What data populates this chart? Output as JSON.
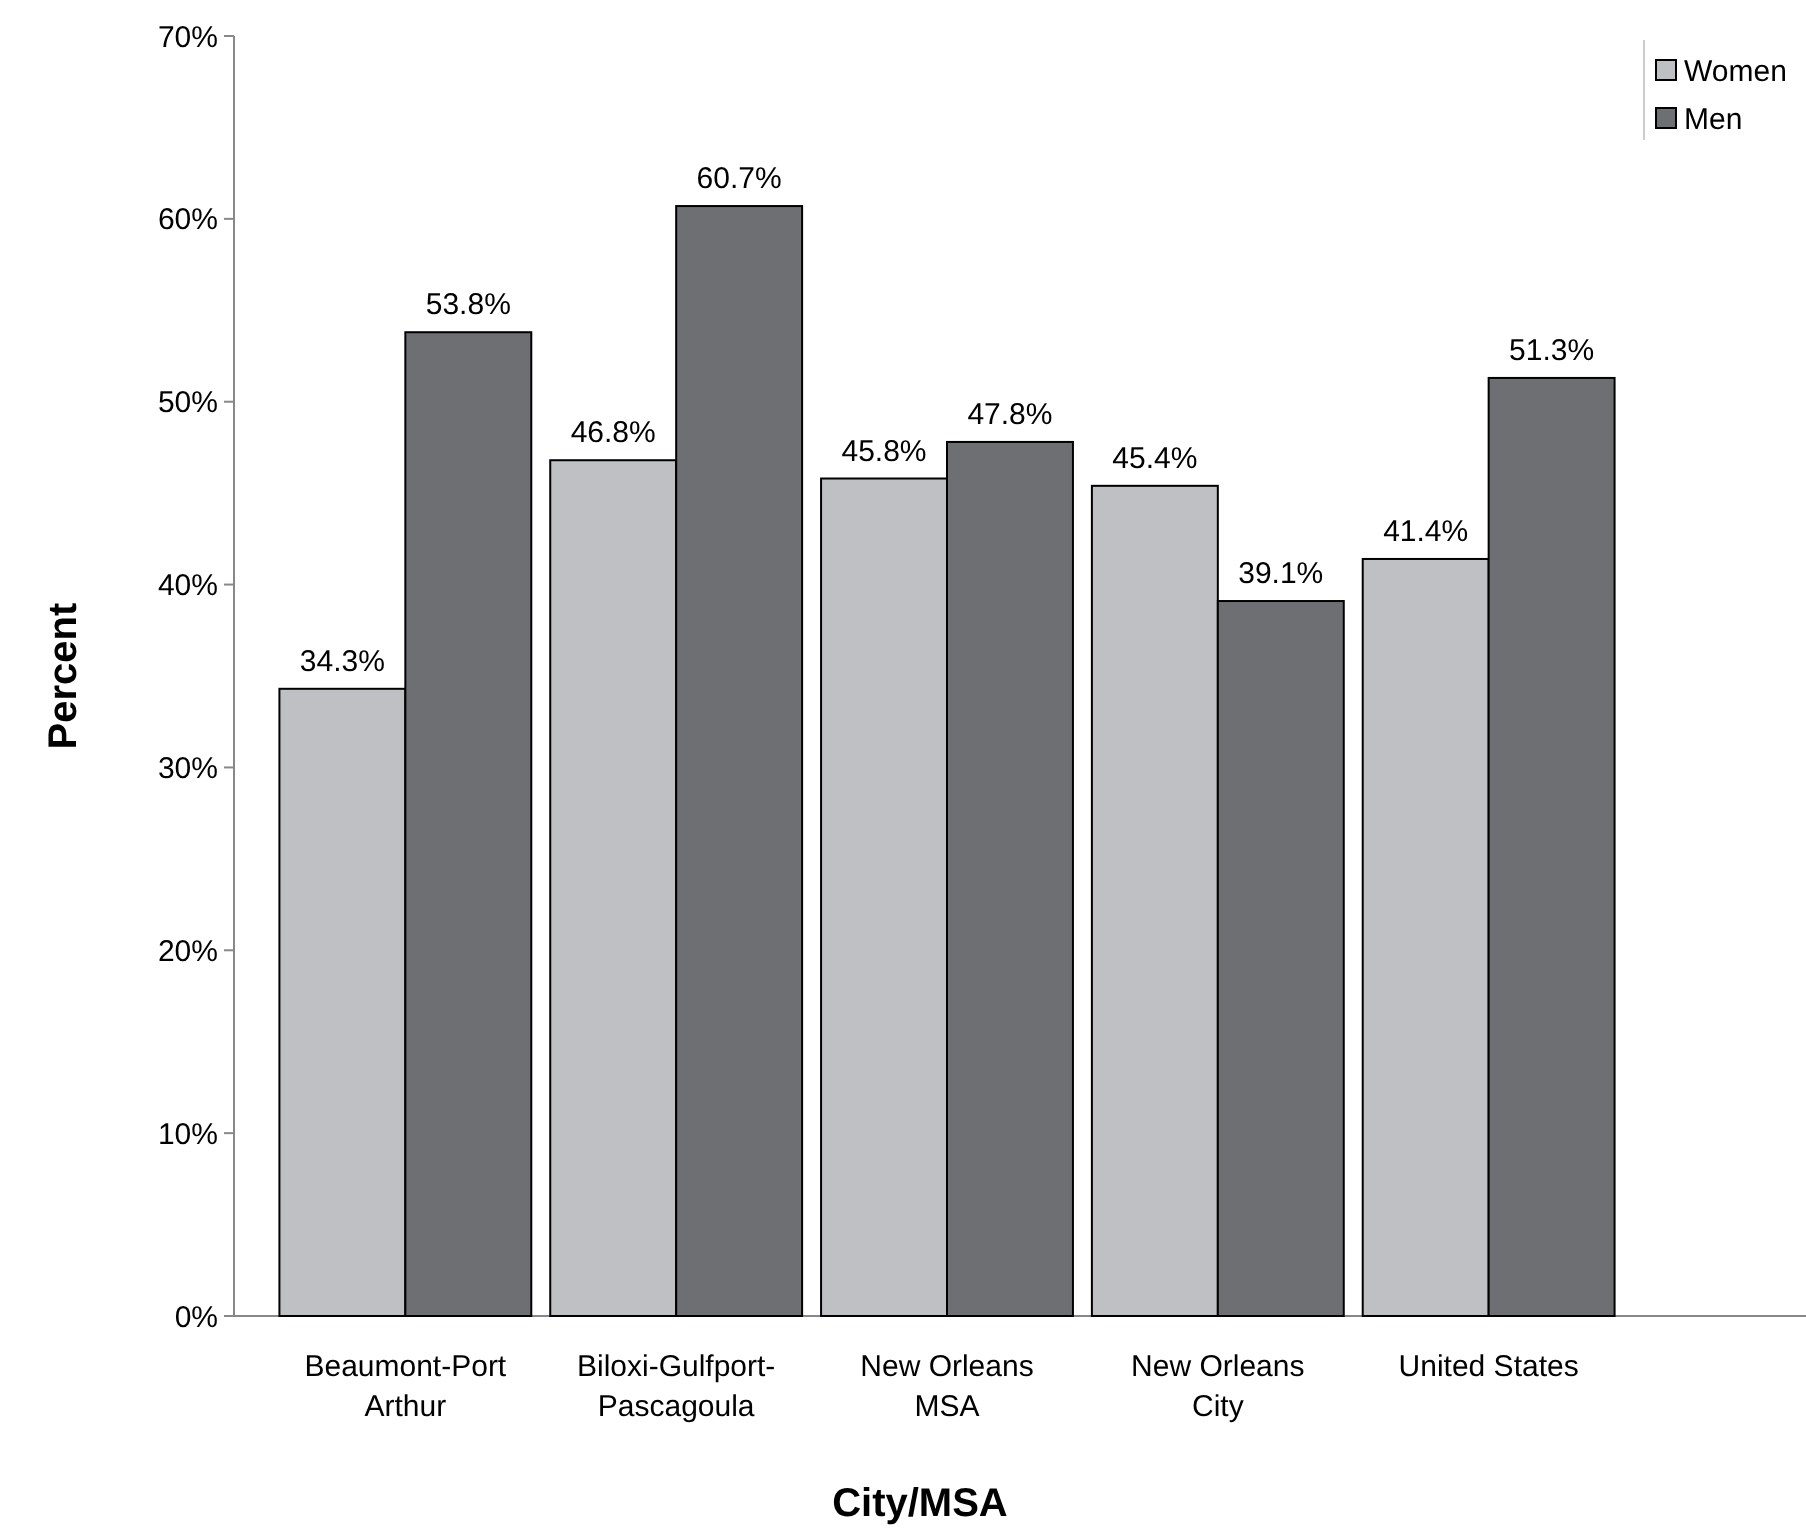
{
  "chart_data": {
    "type": "bar",
    "xlabel": "City/MSA",
    "ylabel": "Percent",
    "categories": [
      "Beaumont-Port\nArthur",
      "Biloxi-Gulfport-\nPascagoula",
      "New Orleans\nMSA",
      "New Orleans\nCity",
      "United States"
    ],
    "series": [
      {
        "name": "Women",
        "color": "#bfc0c4",
        "values": [
          34.3,
          46.8,
          45.8,
          45.4,
          41.4
        ],
        "value_labels": [
          "34.3%",
          "46.8%",
          "45.8%",
          "45.4%",
          "41.4%"
        ]
      },
      {
        "name": "Men",
        "color": "#6e6f73",
        "values": [
          53.8,
          60.7,
          47.8,
          39.1,
          51.3
        ],
        "value_labels": [
          "53.8%",
          "60.7%",
          "47.8%",
          "39.1%",
          "51.3%"
        ]
      }
    ],
    "ylim": [
      0,
      70
    ],
    "yticks": [
      {
        "value": 0,
        "label": "0%"
      },
      {
        "value": 10,
        "label": "10%"
      },
      {
        "value": 20,
        "label": "20%"
      },
      {
        "value": 30,
        "label": "30%"
      },
      {
        "value": 40,
        "label": "40%"
      },
      {
        "value": 50,
        "label": "50%"
      },
      {
        "value": 60,
        "label": "60%"
      },
      {
        "value": 70,
        "label": "70%"
      }
    ],
    "grid": false,
    "legend": "top right"
  }
}
